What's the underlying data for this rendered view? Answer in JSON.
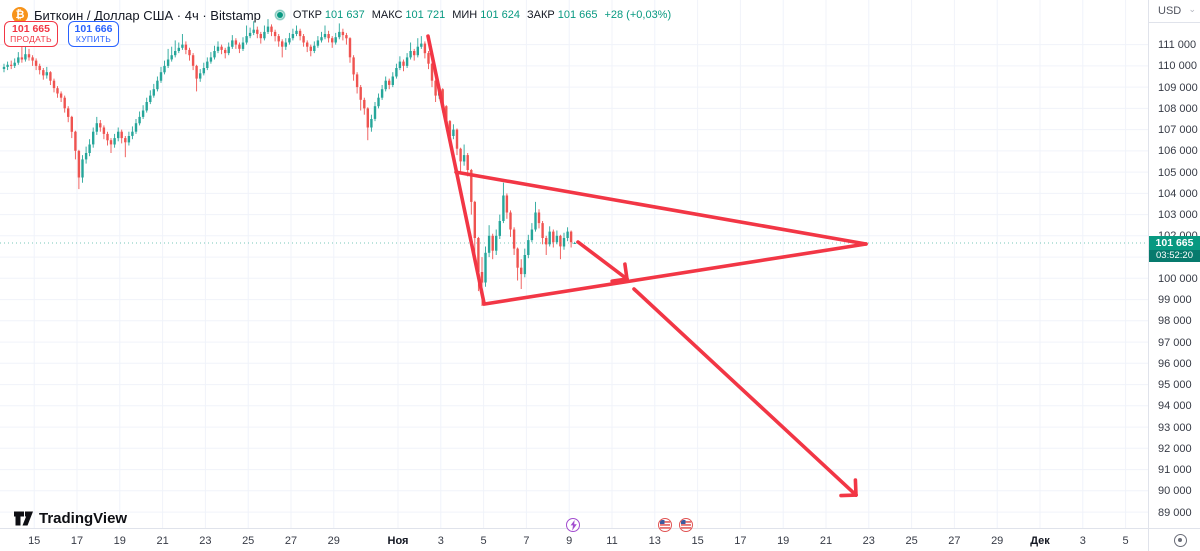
{
  "header": {
    "title": "Биткоин / Доллар США · 4ч · Bitstamp",
    "bitcoin_glyph": "₿",
    "ohlc": [
      {
        "label": "ОТКР",
        "value": "101 637"
      },
      {
        "label": "МАКС",
        "value": "101 721"
      },
      {
        "label": "МИН",
        "value": "101 624"
      },
      {
        "label": "ЗАКР",
        "value": "101 665"
      }
    ],
    "change": "+28 (+0,03%)",
    "sell_button": {
      "price": "101 665",
      "label": "ПРОДАТЬ"
    },
    "buy_button": {
      "price": "101 666",
      "label": "КУПИТЬ"
    }
  },
  "price_scale": {
    "currency_label": "USD",
    "caret": "⌄",
    "last_price": "101 665",
    "countdown": "03:52:20"
  },
  "footer": {
    "logo_text": "TradingView"
  },
  "colors": {
    "up": "#26a69a",
    "down": "#ef5350",
    "drawing": "#f23645",
    "grid": "#f0f3fa",
    "last_price_line": "#089981",
    "last_price_bg": "#089981",
    "countdown_bg": "#077a6d",
    "sell": "#f23645",
    "buy": "#2962ff",
    "btc_orange": "#f7931a",
    "event_purple": "#a24ccf",
    "event_flag_ring": "#e05252"
  },
  "chart_data": {
    "type": "candlestick",
    "symbol": "Биткоин / Доллар США",
    "exchange": "Bitstamp",
    "interval": "4ч",
    "quote_currency": "USD",
    "ohlc_current": {
      "open": 101637,
      "high": 101721,
      "low": 101624,
      "close": 101665,
      "change": 28,
      "change_pct": 0.03
    },
    "y_axis": {
      "ticks": [
        111000,
        110000,
        109000,
        108000,
        107000,
        106000,
        105000,
        104000,
        103000,
        102000,
        101000,
        100000,
        99000,
        98000,
        97000,
        96000,
        95000,
        94000,
        93000,
        92000,
        91000,
        90000,
        89000
      ],
      "price_top": 113100,
      "price_bottom": 88250,
      "grid": true
    },
    "x_axis": {
      "ticks": [
        {
          "label": "15",
          "day": -17
        },
        {
          "label": "17",
          "day": -15
        },
        {
          "label": "19",
          "day": -13
        },
        {
          "label": "21",
          "day": -11
        },
        {
          "label": "23",
          "day": -9
        },
        {
          "label": "25",
          "day": -7
        },
        {
          "label": "27",
          "day": -5
        },
        {
          "label": "29",
          "day": -3
        },
        {
          "label": "Ноя",
          "day": 0,
          "month": true
        },
        {
          "label": "3",
          "day": 2
        },
        {
          "label": "5",
          "day": 4
        },
        {
          "label": "7",
          "day": 6
        },
        {
          "label": "9",
          "day": 8
        },
        {
          "label": "11",
          "day": 10
        },
        {
          "label": "13",
          "day": 12
        },
        {
          "label": "15",
          "day": 14
        },
        {
          "label": "17",
          "day": 16
        },
        {
          "label": "19",
          "day": 18
        },
        {
          "label": "21",
          "day": 20
        },
        {
          "label": "23",
          "day": 22
        },
        {
          "label": "25",
          "day": 24
        },
        {
          "label": "27",
          "day": 26
        },
        {
          "label": "29",
          "day": 28
        },
        {
          "label": "Дек",
          "day": 30,
          "month": true
        },
        {
          "label": "3",
          "day": 32
        },
        {
          "label": "5",
          "day": 34
        }
      ],
      "grid": true
    },
    "last_price": 101665,
    "candles_start_day": -18.41,
    "candle_interval_days": 0.1666667,
    "candles": [
      [
        109850,
        110100,
        109700,
        109950
      ],
      [
        109950,
        110200,
        109800,
        110050
      ],
      [
        110050,
        110250,
        109850,
        110000
      ],
      [
        110000,
        110350,
        109900,
        110150
      ],
      [
        110150,
        110650,
        110050,
        110400
      ],
      [
        110400,
        110900,
        110150,
        110300
      ],
      [
        110300,
        111250,
        110200,
        110550
      ],
      [
        110550,
        110800,
        110250,
        110400
      ],
      [
        110400,
        110500,
        110000,
        110250
      ],
      [
        110250,
        110350,
        109800,
        110000
      ],
      [
        110000,
        110100,
        109600,
        109800
      ],
      [
        109800,
        109900,
        109350,
        109550
      ],
      [
        109550,
        109950,
        109400,
        109700
      ],
      [
        109700,
        109750,
        109100,
        109300
      ],
      [
        109300,
        109400,
        108750,
        108950
      ],
      [
        108950,
        109050,
        108500,
        108700
      ],
      [
        108700,
        108800,
        108300,
        108500
      ],
      [
        108500,
        108600,
        107800,
        108000
      ],
      [
        108000,
        108100,
        107350,
        107600
      ],
      [
        107600,
        107650,
        106600,
        106900
      ],
      [
        106900,
        106950,
        105600,
        106000
      ],
      [
        106000,
        106050,
        104200,
        104750
      ],
      [
        104750,
        105800,
        104500,
        105600
      ],
      [
        105600,
        106200,
        105400,
        105900
      ],
      [
        105900,
        106550,
        105750,
        106300
      ],
      [
        106300,
        107100,
        106150,
        106900
      ],
      [
        106900,
        107600,
        106750,
        107300
      ],
      [
        107300,
        107450,
        106900,
        107100
      ],
      [
        107100,
        107200,
        106550,
        106800
      ],
      [
        106800,
        106900,
        106250,
        106500
      ],
      [
        106500,
        106600,
        105900,
        106300
      ],
      [
        106300,
        106800,
        106150,
        106600
      ],
      [
        106600,
        107100,
        106450,
        106900
      ],
      [
        106900,
        107000,
        106350,
        106600
      ],
      [
        106600,
        106700,
        105700,
        106400
      ],
      [
        106400,
        106900,
        106250,
        106700
      ],
      [
        106700,
        107150,
        106550,
        106900
      ],
      [
        106900,
        107500,
        106800,
        107300
      ],
      [
        107300,
        107850,
        107200,
        107600
      ],
      [
        107600,
        108150,
        107500,
        107900
      ],
      [
        107900,
        108500,
        107800,
        108300
      ],
      [
        108300,
        108850,
        108200,
        108600
      ],
      [
        108600,
        109150,
        108500,
        108900
      ],
      [
        108900,
        109500,
        108800,
        109300
      ],
      [
        109300,
        109950,
        109200,
        109700
      ],
      [
        109700,
        110250,
        109600,
        110000
      ],
      [
        110000,
        110800,
        109900,
        110300
      ],
      [
        110300,
        110900,
        110200,
        110500
      ],
      [
        110500,
        111200,
        110400,
        110700
      ],
      [
        110700,
        111100,
        110600,
        110850
      ],
      [
        110850,
        111500,
        110750,
        111000
      ],
      [
        111000,
        111150,
        110550,
        110750
      ],
      [
        110750,
        110850,
        110250,
        110500
      ],
      [
        110500,
        110600,
        109800,
        110000
      ],
      [
        110000,
        110050,
        108800,
        109400
      ],
      [
        109400,
        109850,
        109250,
        109650
      ],
      [
        109650,
        110150,
        109550,
        109900
      ],
      [
        109900,
        110400,
        109800,
        110200
      ],
      [
        110200,
        110650,
        110100,
        110400
      ],
      [
        110400,
        110950,
        110300,
        110700
      ],
      [
        110700,
        111150,
        110600,
        110900
      ],
      [
        110900,
        111000,
        110550,
        110750
      ],
      [
        110750,
        110850,
        110350,
        110600
      ],
      [
        110600,
        111100,
        110500,
        110900
      ],
      [
        110900,
        111450,
        110800,
        111200
      ],
      [
        111200,
        111300,
        110800,
        111000
      ],
      [
        111000,
        111100,
        110600,
        110800
      ],
      [
        110800,
        111350,
        110700,
        111100
      ],
      [
        111100,
        111900,
        111000,
        111400
      ],
      [
        111400,
        111800,
        111300,
        111550
      ],
      [
        111550,
        112100,
        111450,
        111700
      ],
      [
        111700,
        111850,
        111300,
        111500
      ],
      [
        111500,
        111600,
        111050,
        111300
      ],
      [
        111300,
        111900,
        111200,
        111600
      ],
      [
        111600,
        112200,
        111500,
        111850
      ],
      [
        111850,
        111950,
        111400,
        111600
      ],
      [
        111600,
        111700,
        111150,
        111400
      ],
      [
        111400,
        111500,
        110900,
        111150
      ],
      [
        111150,
        111250,
        110400,
        110900
      ],
      [
        110900,
        111300,
        110750,
        111100
      ],
      [
        111100,
        111550,
        111000,
        111300
      ],
      [
        111300,
        111750,
        111200,
        111500
      ],
      [
        111500,
        111900,
        111400,
        111650
      ],
      [
        111650,
        111750,
        111200,
        111400
      ],
      [
        111400,
        111500,
        110900,
        111100
      ],
      [
        111100,
        111200,
        110650,
        110900
      ],
      [
        110900,
        111000,
        110450,
        110700
      ],
      [
        110700,
        111150,
        110600,
        110950
      ],
      [
        110950,
        111400,
        110850,
        111200
      ],
      [
        111200,
        111600,
        111100,
        111350
      ],
      [
        111350,
        111900,
        111250,
        111500
      ],
      [
        111500,
        111650,
        111100,
        111300
      ],
      [
        111300,
        111400,
        110850,
        111100
      ],
      [
        111100,
        111550,
        111000,
        111350
      ],
      [
        111350,
        112000,
        111250,
        111600
      ],
      [
        111600,
        111750,
        111200,
        111450
      ],
      [
        111450,
        111550,
        111000,
        111300
      ],
      [
        111300,
        111350,
        110150,
        110400
      ],
      [
        110400,
        110500,
        109300,
        109600
      ],
      [
        109600,
        109700,
        108700,
        109000
      ],
      [
        109000,
        109100,
        107900,
        108400
      ],
      [
        108400,
        108500,
        107700,
        108000
      ],
      [
        108000,
        108050,
        106500,
        107100
      ],
      [
        107100,
        107700,
        106900,
        107500
      ],
      [
        107500,
        108300,
        107400,
        108100
      ],
      [
        108100,
        108700,
        108000,
        108500
      ],
      [
        108500,
        109100,
        108400,
        108900
      ],
      [
        108900,
        109500,
        108800,
        109300
      ],
      [
        109300,
        109400,
        108900,
        109100
      ],
      [
        109100,
        109700,
        109000,
        109500
      ],
      [
        109500,
        110100,
        109400,
        109900
      ],
      [
        109900,
        110450,
        109800,
        110200
      ],
      [
        110200,
        110300,
        109750,
        110000
      ],
      [
        110000,
        110600,
        109900,
        110400
      ],
      [
        110400,
        111100,
        110300,
        110700
      ],
      [
        110700,
        110800,
        110250,
        110500
      ],
      [
        110500,
        111300,
        110400,
        110900
      ],
      [
        110900,
        111400,
        110800,
        111050
      ],
      [
        111050,
        111150,
        110350,
        110600
      ],
      [
        110600,
        110700,
        109850,
        110100
      ],
      [
        110100,
        110150,
        109000,
        109300
      ],
      [
        109300,
        109350,
        108300,
        108600
      ],
      [
        108600,
        109100,
        108450,
        108900
      ],
      [
        108900,
        108950,
        107800,
        108100
      ],
      [
        108100,
        108150,
        107100,
        107400
      ],
      [
        107400,
        107450,
        106200,
        106700
      ],
      [
        106700,
        107250,
        106550,
        107000
      ],
      [
        107000,
        107050,
        105800,
        106100
      ],
      [
        106100,
        106150,
        104900,
        105500
      ],
      [
        105500,
        106300,
        105300,
        105800
      ],
      [
        105800,
        105900,
        104800,
        105100
      ],
      [
        105100,
        105150,
        103000,
        103600
      ],
      [
        103600,
        103650,
        101100,
        101900
      ],
      [
        101900,
        101950,
        99400,
        100300
      ],
      [
        100300,
        101000,
        98700,
        99800
      ],
      [
        99800,
        101500,
        99600,
        101200
      ],
      [
        101200,
        102500,
        101000,
        102000
      ],
      [
        102000,
        102100,
        100900,
        101300
      ],
      [
        101300,
        102300,
        101100,
        102000
      ],
      [
        102000,
        103000,
        101850,
        102700
      ],
      [
        102700,
        104500,
        102600,
        103900
      ],
      [
        103900,
        104000,
        102800,
        103100
      ],
      [
        103100,
        103200,
        101950,
        102300
      ],
      [
        102300,
        102400,
        101100,
        101400
      ],
      [
        101400,
        101450,
        99900,
        100500
      ],
      [
        100500,
        100900,
        99500,
        100200
      ],
      [
        100200,
        101400,
        100050,
        101100
      ],
      [
        101100,
        102050,
        100950,
        101800
      ],
      [
        101800,
        102600,
        101700,
        102300
      ],
      [
        102300,
        103600,
        102200,
        103100
      ],
      [
        103100,
        103250,
        102350,
        102600
      ],
      [
        102600,
        102700,
        101600,
        101900
      ],
      [
        101900,
        102000,
        101100,
        101600
      ],
      [
        101600,
        102450,
        101500,
        102200
      ],
      [
        102200,
        102300,
        101450,
        101700
      ],
      [
        101700,
        102250,
        101600,
        102000
      ],
      [
        102000,
        102050,
        100900,
        101500
      ],
      [
        101500,
        102150,
        101350,
        101900
      ],
      [
        101900,
        102400,
        101750,
        102200
      ],
      [
        102200,
        102250,
        101450,
        101700
      ],
      [
        101637,
        101721,
        101624,
        101665
      ]
    ],
    "drawings": [
      {
        "type": "trendline",
        "points": [
          {
            "day": 1.4,
            "price": 111400
          },
          {
            "day": 4.02,
            "price": 98840
          }
        ]
      },
      {
        "type": "trendline",
        "points": [
          {
            "day": 2.71,
            "price": 105000
          },
          {
            "day": 21.87,
            "price": 101615
          }
        ]
      },
      {
        "type": "trendline",
        "points": [
          {
            "day": 4.02,
            "price": 98790
          },
          {
            "day": 21.87,
            "price": 101615
          }
        ]
      },
      {
        "type": "arrow",
        "points": [
          {
            "day": 8.41,
            "price": 101710
          },
          {
            "day": 10.7,
            "price": 99970
          }
        ]
      },
      {
        "type": "arrow",
        "points": [
          {
            "day": 11.03,
            "price": 99500
          },
          {
            "day": 21.4,
            "price": 89800
          }
        ]
      }
    ],
    "events": [
      {
        "icon": "economic-event-icon",
        "day": 8.18
      },
      {
        "icon": "us-flag-event-icon",
        "day": 12.48
      },
      {
        "icon": "us-flag-event-icon",
        "day": 13.46
      }
    ]
  }
}
